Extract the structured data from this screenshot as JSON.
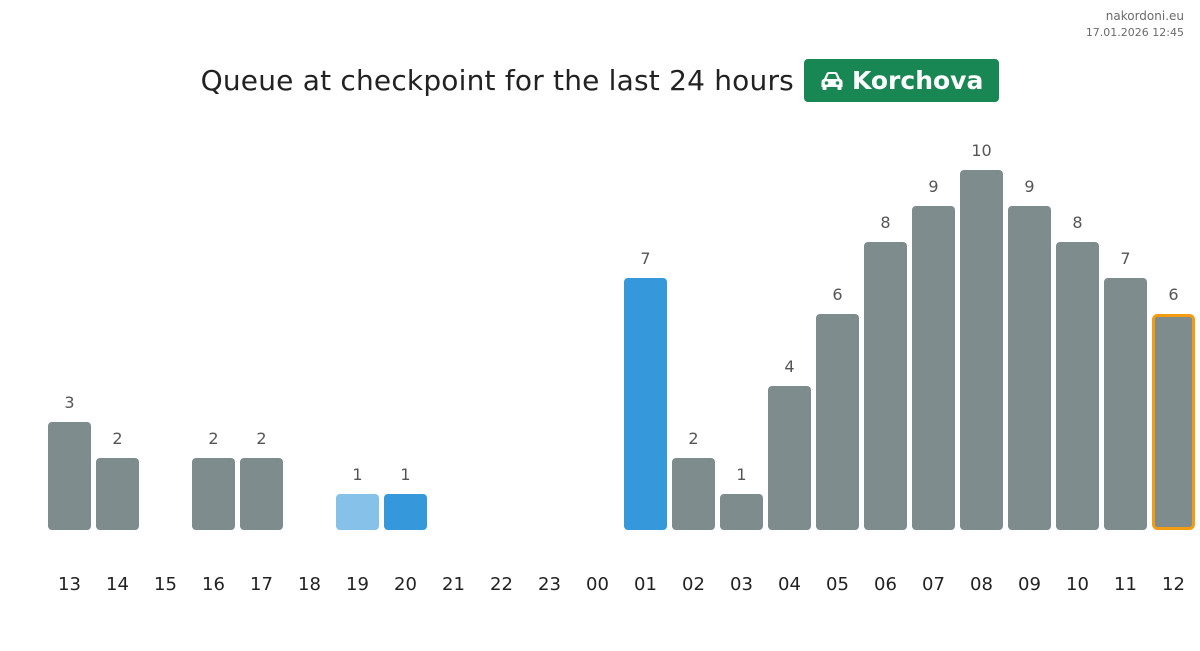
{
  "header": {
    "site": "nakordoni.eu",
    "timestamp": "17.01.2026 12:45",
    "title": "Queue at checkpoint for the last 24 hours",
    "checkpoint": "Korchova",
    "checkpoint_icon": "car-icon",
    "badge_color": "#198754"
  },
  "chart_data": {
    "type": "bar",
    "title": "Queue at checkpoint for the last 24 hours",
    "xlabel": "",
    "ylabel": "",
    "categories": [
      "13",
      "14",
      "15",
      "16",
      "17",
      "18",
      "19",
      "20",
      "21",
      "22",
      "23",
      "00",
      "01",
      "02",
      "03",
      "04",
      "05",
      "06",
      "07",
      "08",
      "09",
      "10",
      "11",
      "12"
    ],
    "values": [
      3,
      2,
      0,
      2,
      2,
      0,
      1,
      1,
      0,
      0,
      0,
      0,
      7,
      2,
      1,
      4,
      6,
      8,
      9,
      10,
      9,
      8,
      7,
      6
    ],
    "ylim": [
      0,
      10
    ],
    "grid": false,
    "legend": "none",
    "colors": {
      "default": "#7f8c8d",
      "light_blue": "#85c1e9",
      "blue": "#3498db",
      "highlight_border": "#f39c12"
    },
    "bar_colors": [
      "default",
      "default",
      "default",
      "default",
      "default",
      "default",
      "light_blue",
      "blue",
      "default",
      "default",
      "default",
      "default",
      "blue",
      "default",
      "default",
      "default",
      "default",
      "default",
      "default",
      "default",
      "default",
      "default",
      "default",
      "default"
    ],
    "highlighted_index": 23
  }
}
